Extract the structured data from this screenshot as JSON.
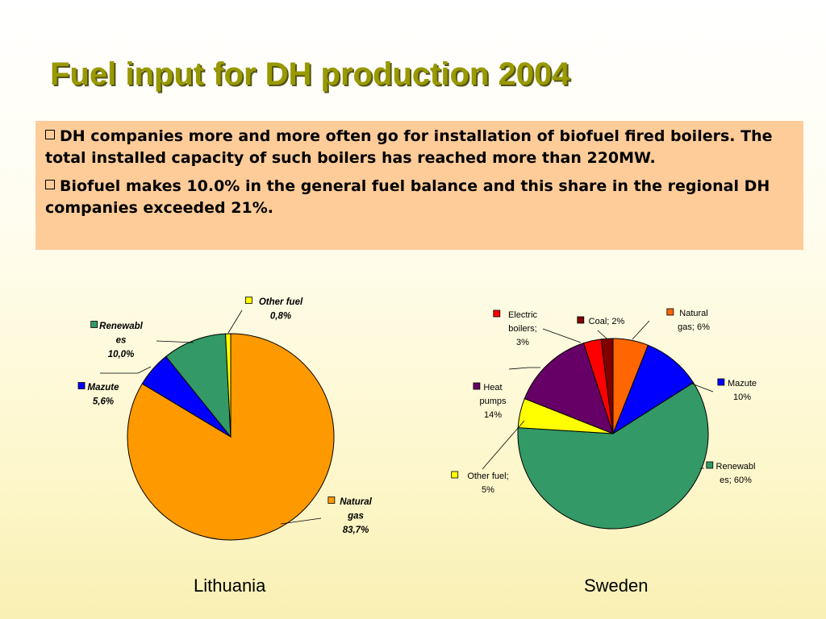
{
  "title": "Fuel input for DH production 2004",
  "bullets": [
    "DH companies more and more often go for installation of biofuel fired boilers. The total installed capacity of such boilers has reached more than 220MW.",
    "Biofuel makes 10.0% in the general fuel balance and this share in the regional DH companies exceeded 21%."
  ],
  "chart_data": [
    {
      "type": "pie",
      "caption": "Lithuania",
      "slices": [
        {
          "label": "Natural gas",
          "value": 83.7,
          "label_lines": [
            "Natural",
            "gas",
            "83,7%"
          ],
          "color": "#ff9900"
        },
        {
          "label": "Mazute",
          "value": 5.6,
          "label_lines": [
            "Mazute",
            "5,6%"
          ],
          "color": "#0000ff"
        },
        {
          "label": "Renewables",
          "value": 10.0,
          "label_lines": [
            "Renewabl",
            "es",
            "10,0%"
          ],
          "color": "#339966"
        },
        {
          "label": "Other fuel",
          "value": 0.8,
          "label_lines": [
            "Other fuel",
            "0,8%"
          ],
          "color": "#ffff00"
        }
      ]
    },
    {
      "type": "pie",
      "caption": "Sweden",
      "slices": [
        {
          "label": "Natural gas",
          "value": 6,
          "label_lines": [
            "Natural",
            "gas; 6%"
          ],
          "color": "#ff6600"
        },
        {
          "label": "Mazute",
          "value": 10,
          "label_lines": [
            "Mazute",
            "10%"
          ],
          "color": "#0000ff"
        },
        {
          "label": "Renewables",
          "value": 60,
          "label_lines": [
            "Renewabl",
            "es; 60%"
          ],
          "color": "#339966"
        },
        {
          "label": "Other fuel",
          "value": 5,
          "label_lines": [
            "Other fuel;",
            "5%"
          ],
          "color": "#ffff00"
        },
        {
          "label": "Heat pumps",
          "value": 14,
          "label_lines": [
            "Heat",
            "pumps",
            "14%"
          ],
          "color": "#660066"
        },
        {
          "label": "Electric boilers",
          "value": 3,
          "label_lines": [
            "Electric",
            "boilers;",
            "3%"
          ],
          "color": "#ff0000"
        },
        {
          "label": "Coal",
          "value": 2,
          "label_lines": [
            "Coal; 2%"
          ],
          "color": "#800000"
        }
      ]
    }
  ]
}
